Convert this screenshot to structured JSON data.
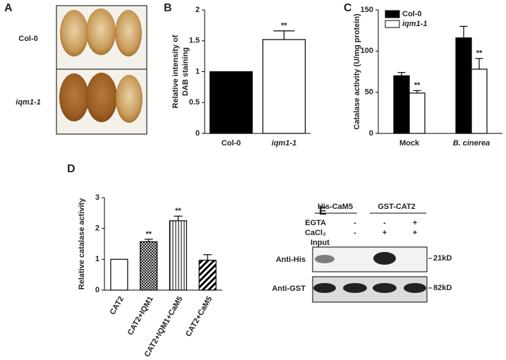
{
  "chart_data": [
    {
      "type": "bar",
      "label": "B",
      "ylabel": [
        "Relative intensity of",
        "DAB staining"
      ],
      "categories": [
        "Col-0",
        "iqm1-1"
      ],
      "values": [
        1,
        1.52
      ],
      "errors": [
        0,
        0.14
      ],
      "colors": [
        "#000000",
        "#ffffff"
      ],
      "significance": [
        null,
        "**"
      ],
      "ylim": [
        0,
        2
      ],
      "yticks": [
        0,
        0.5,
        1,
        1.5,
        2
      ]
    },
    {
      "type": "grouped-bar",
      "label": "C",
      "ylabel": [
        "Catalase activity (U/mg protein)"
      ],
      "categories": [
        "Mock",
        "B. cinerea"
      ],
      "series": [
        {
          "name": "Col-0",
          "color": "#000000",
          "values": [
            70,
            116
          ],
          "errors": [
            4,
            14
          ],
          "significance": [
            null,
            null
          ]
        },
        {
          "name": "iqm1-1",
          "color": "#ffffff",
          "values": [
            49,
            78
          ],
          "errors": [
            3,
            13
          ],
          "significance": [
            "**",
            "**"
          ]
        }
      ],
      "ylim": [
        0,
        150
      ],
      "yticks": [
        0,
        50,
        100,
        150
      ],
      "legend": "top-left"
    },
    {
      "type": "bar",
      "label": "D",
      "ylabel": [
        "Relative catalase activity"
      ],
      "categories": [
        "CAT2",
        "CAT2+IQM1",
        "CAT2+IQM1+CaM5",
        "CAT2+CaM5"
      ],
      "values": [
        1,
        1.57,
        2.25,
        0.97
      ],
      "errors": [
        0,
        0.08,
        0.15,
        0.18
      ],
      "fills": [
        "plain",
        "crosshatch",
        "vertical",
        "diagonal"
      ],
      "colors": [
        "#ffffff",
        "#ffffff",
        "#ffffff",
        "#ffffff"
      ],
      "significance": [
        null,
        "**",
        "**",
        null
      ],
      "ylim": [
        0,
        3
      ],
      "yticks": [
        0,
        1,
        2,
        3
      ]
    }
  ],
  "panel_a": {
    "label": "A",
    "rows": [
      "Col-0",
      "iqm1-1"
    ]
  },
  "panel_e": {
    "label": "E",
    "headers": [
      "His-CaM5",
      "GST-CAT2"
    ],
    "conditions": [
      {
        "name": "EGTA",
        "marks": [
          "-",
          "-",
          "+"
        ]
      },
      {
        "name": "CaCl₂",
        "marks": [
          "-",
          "+",
          "+"
        ]
      }
    ],
    "input": "Input",
    "blots": [
      {
        "antibody": "Anti-His",
        "size": "21kD"
      },
      {
        "antibody": "Anti-GST",
        "size": "82kD"
      }
    ]
  }
}
